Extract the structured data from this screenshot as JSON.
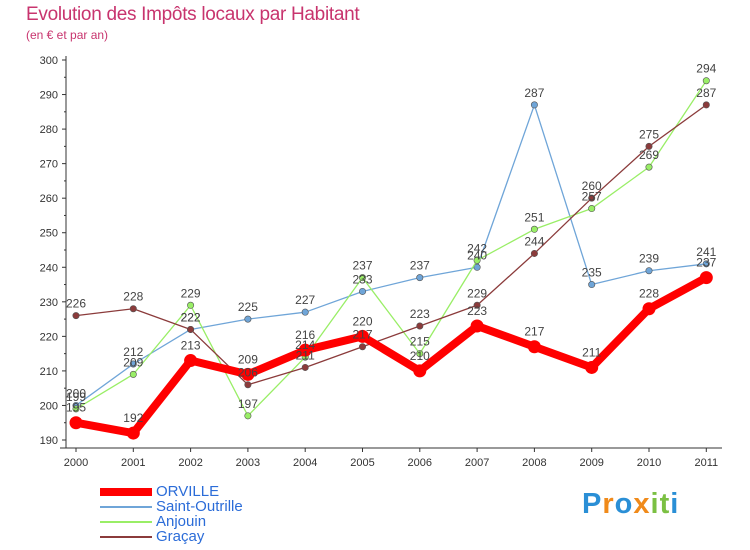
{
  "chart_data": {
    "type": "line",
    "title": "Evolution des Impôts locaux par Habitant",
    "subtitle": "(en € et par an)",
    "xlabel": "",
    "ylabel": "",
    "categories": [
      "2000",
      "2001",
      "2002",
      "2003",
      "2004",
      "2005",
      "2006",
      "2007",
      "2008",
      "2009",
      "2010",
      "2011"
    ],
    "ylim": [
      190,
      300
    ],
    "yticks": [
      "190",
      "200",
      "210",
      "220",
      "230",
      "240",
      "250",
      "260",
      "270",
      "280",
      "290",
      "300"
    ],
    "grid": false,
    "legend_position": "bottom-left",
    "series": [
      {
        "name": "ORVILLE",
        "color": "#ff0000",
        "emphasis": true,
        "values": [
          195,
          192,
          213,
          209,
          216,
          220,
          210,
          223,
          217,
          211,
          228,
          237
        ],
        "labels": [
          "195",
          "192",
          "213",
          "209",
          "216",
          "220",
          "210",
          "223",
          "217",
          "211",
          "228",
          "237"
        ]
      },
      {
        "name": "Saint-Outrille",
        "color": "#6fa5d8",
        "emphasis": false,
        "values": [
          200,
          212,
          222,
          225,
          227,
          233,
          237,
          240,
          287,
          235,
          239,
          241
        ],
        "labels": [
          "200",
          "212",
          "222",
          "225",
          "227",
          "233",
          "237",
          "240",
          "287",
          "235",
          "239",
          "241"
        ]
      },
      {
        "name": "Anjouin",
        "color": "#99ee66",
        "emphasis": false,
        "values": [
          199,
          209,
          229,
          197,
          214,
          237,
          215,
          242,
          251,
          257,
          269,
          294
        ],
        "labels": [
          "199",
          "209",
          "229",
          "197",
          "214",
          "237",
          "215",
          "242",
          "251",
          "257",
          "269",
          "294"
        ]
      },
      {
        "name": "Graçay",
        "color": "#8b3b3b",
        "emphasis": false,
        "values": [
          226,
          228,
          222,
          206,
          211,
          217,
          223,
          229,
          244,
          260,
          275,
          287
        ],
        "labels": [
          "226",
          "228",
          "222",
          "206",
          "211",
          "217",
          "223",
          "229",
          "244",
          "260",
          "275",
          "287"
        ]
      }
    ]
  },
  "brand": {
    "letters": [
      "P",
      "r",
      "o",
      "x",
      "i",
      "t",
      "i"
    ],
    "colors": [
      "#2a8fd6",
      "#f08a1a",
      "#2a8fd6",
      "#f08a1a",
      "#7bc043",
      "#7bc043",
      "#2a8fd6"
    ]
  }
}
